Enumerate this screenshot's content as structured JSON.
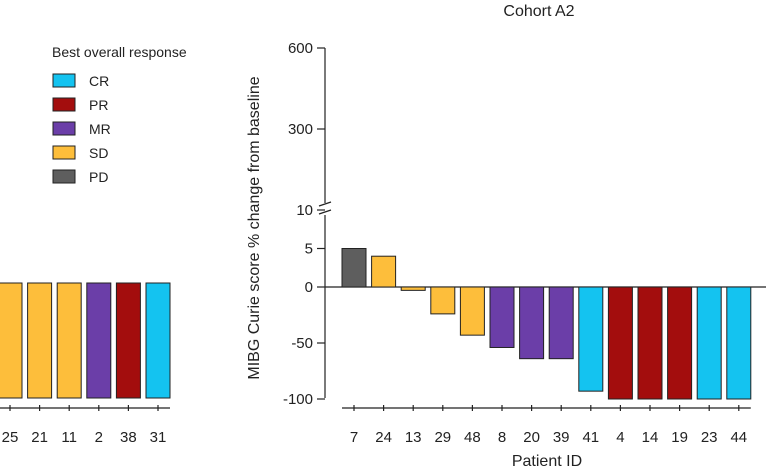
{
  "colors": {
    "CR": "#14c3f0",
    "PR": "#a30d0d",
    "MR": "#6b3ea8",
    "SD": "#fdbe3b",
    "PD": "#5e5e5e"
  },
  "legend": {
    "title": "Best overall response",
    "items": [
      {
        "key": "CR",
        "label": "CR"
      },
      {
        "key": "PR",
        "label": "PR"
      },
      {
        "key": "MR",
        "label": "MR"
      },
      {
        "key": "SD",
        "label": "SD"
      },
      {
        "key": "PD",
        "label": "PD"
      }
    ]
  },
  "chart_data": [
    {
      "type": "bar",
      "title": "",
      "xlabel": "",
      "ylabel": "",
      "categories": [
        "25",
        "21",
        "11",
        "2",
        "38",
        "31"
      ],
      "values": [
        -100,
        -100,
        -100,
        -100,
        -100,
        -100
      ],
      "responses": [
        "SD",
        "SD",
        "SD",
        "MR",
        "PR",
        "CR"
      ]
    },
    {
      "type": "bar",
      "title": "Cohort A2",
      "xlabel": "Patient ID",
      "ylabel": "MIBG Curie score % change from baseline",
      "categories": [
        "7",
        "24",
        "13",
        "29",
        "48",
        "8",
        "20",
        "39",
        "41",
        "4",
        "14",
        "19",
        "23",
        "44"
      ],
      "values": [
        5,
        4,
        -3,
        -24,
        -43,
        -54,
        -64,
        -64,
        -93,
        -100,
        -100,
        -100,
        -100,
        -100
      ],
      "responses": [
        "PD",
        "SD",
        "SD",
        "SD",
        "SD",
        "MR",
        "MR",
        "MR",
        "CR",
        "PR",
        "PR",
        "PR",
        "CR",
        "CR"
      ],
      "yticks": [
        600,
        300,
        10,
        5,
        0,
        -50,
        -100
      ],
      "axis_break_between": [
        10,
        300
      ],
      "ylim": [
        -100,
        600
      ]
    }
  ]
}
